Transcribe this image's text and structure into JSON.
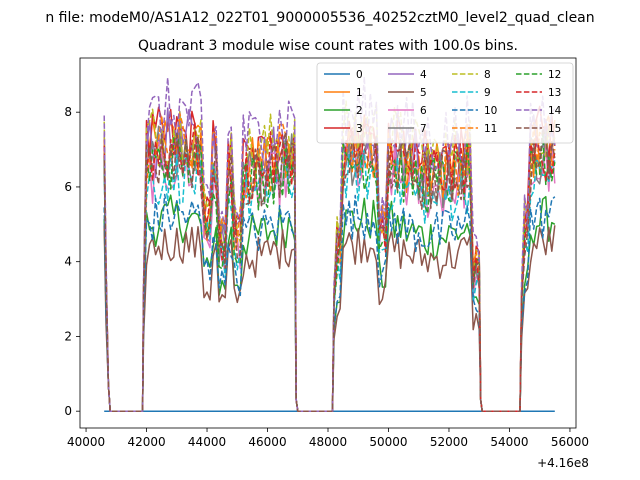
{
  "figure": {
    "suptitle": "n file: modeM0/AS1A12_022T01_9000005536_40252cztM0_level2_quad_clean"
  },
  "chart_data": {
    "type": "line",
    "title": "Quadrant 3 module wise count rates with 100.0s bins.",
    "xlabel": "",
    "ylabel": "",
    "x_offset_label": "+4.16e8",
    "xlim": [
      39800,
      56200
    ],
    "ylim": [
      -0.45,
      9.45
    ],
    "x_ticks": [
      40000,
      42000,
      44000,
      46000,
      48000,
      50000,
      52000,
      54000,
      56000
    ],
    "x_tick_labels": [
      "40000",
      "42000",
      "44000",
      "46000",
      "48000",
      "50000",
      "52000",
      "54000",
      "56000"
    ],
    "y_ticks": [
      0,
      2,
      4,
      6,
      8
    ],
    "y_tick_labels": [
      "0",
      "2",
      "4",
      "6",
      "8"
    ],
    "grid": false,
    "legend_location": "upper right",
    "legend_columns": 4,
    "series": [
      {
        "name": "0",
        "color": "#1f77b4",
        "dash": "solid"
      },
      {
        "name": "1",
        "color": "#ff7f0e",
        "dash": "solid"
      },
      {
        "name": "2",
        "color": "#2ca02c",
        "dash": "solid"
      },
      {
        "name": "3",
        "color": "#d62728",
        "dash": "solid"
      },
      {
        "name": "4",
        "color": "#9467bd",
        "dash": "solid"
      },
      {
        "name": "5",
        "color": "#8c564b",
        "dash": "solid"
      },
      {
        "name": "6",
        "color": "#e377c2",
        "dash": "solid"
      },
      {
        "name": "7",
        "color": "#7f7f7f",
        "dash": "solid"
      },
      {
        "name": "8",
        "color": "#bcbd22",
        "dash": "dashed"
      },
      {
        "name": "9",
        "color": "#17becf",
        "dash": "dashed"
      },
      {
        "name": "10",
        "color": "#1f77b4",
        "dash": "dashed"
      },
      {
        "name": "11",
        "color": "#ff7f0e",
        "dash": "dashed"
      },
      {
        "name": "12",
        "color": "#2ca02c",
        "dash": "dashed"
      },
      {
        "name": "13",
        "color": "#d62728",
        "dash": "dashed"
      },
      {
        "name": "14",
        "color": "#9467bd",
        "dash": "dashed"
      },
      {
        "name": "15",
        "color": "#8c564b",
        "dash": "dashed"
      }
    ],
    "levels": [
      0.0,
      6.8,
      4.9,
      7.0,
      6.9,
      4.3,
      6.2,
      6.6,
      7.2,
      6.0,
      5.0,
      6.8,
      6.4,
      6.7,
      7.6,
      6.5
    ],
    "segments": {
      "on_1": [
        41900,
        46900
      ],
      "off_2": [
        47000,
        48150
      ],
      "on_2": [
        48200,
        53000
      ],
      "off_3": [
        53100,
        54350
      ],
      "on_3": [
        54400,
        55500
      ],
      "start_peak_x": 40600
    }
  }
}
